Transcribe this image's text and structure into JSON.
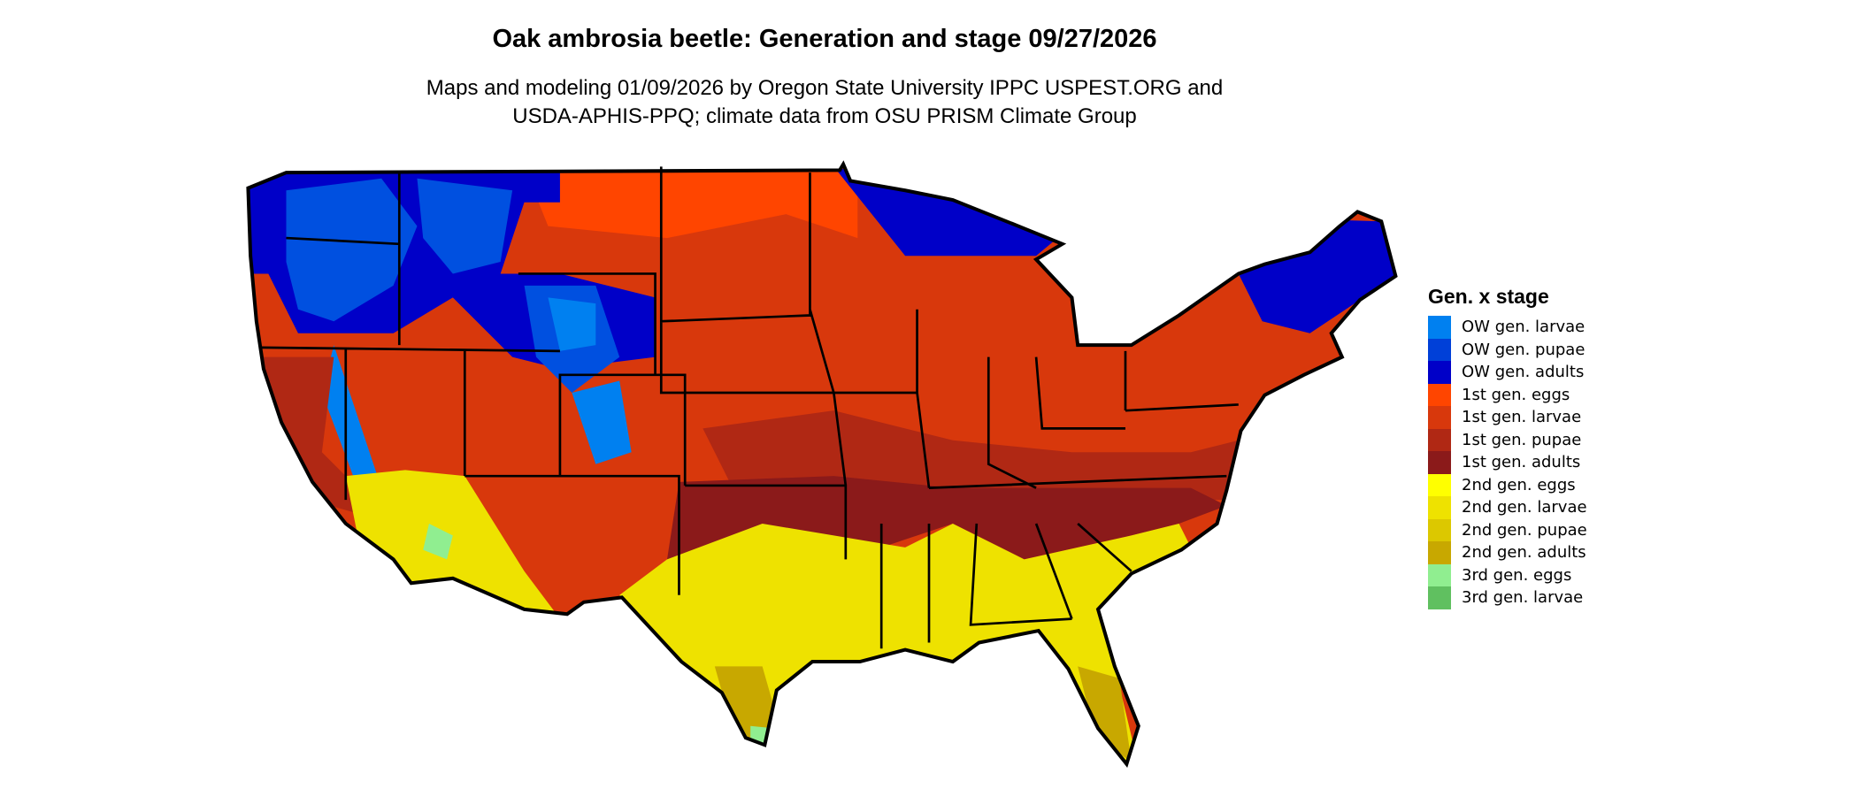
{
  "title": "Oak ambrosia beetle: Generation and stage 09/27/2026",
  "subtitle_line1": "Maps and modeling 01/09/2026 by Oregon State University IPPC USPEST.ORG and",
  "subtitle_line2": "USDA-APHIS-PPQ; climate data from OSU PRISM Climate Group",
  "legend": {
    "title": "Gen. x stage",
    "items": [
      {
        "label": "OW gen. larvae",
        "color": "#0080f0"
      },
      {
        "label": "OW gen. pupae",
        "color": "#0040d8"
      },
      {
        "label": "OW gen. adults",
        "color": "#0000c8"
      },
      {
        "label": "1st gen. eggs",
        "color": "#ff4500"
      },
      {
        "label": "1st gen. larvae",
        "color": "#d8380c"
      },
      {
        "label": "1st gen. pupae",
        "color": "#b02814"
      },
      {
        "label": "1st gen. adults",
        "color": "#8b1a1a"
      },
      {
        "label": "2nd gen. eggs",
        "color": "#ffff00"
      },
      {
        "label": "2nd gen. larvae",
        "color": "#eee200"
      },
      {
        "label": "2nd gen. pupae",
        "color": "#dcc800"
      },
      {
        "label": "2nd gen. adults",
        "color": "#c8a800"
      },
      {
        "label": "3rd gen. eggs",
        "color": "#90ee90"
      },
      {
        "label": "3rd gen. larvae",
        "color": "#60c060"
      }
    ]
  }
}
